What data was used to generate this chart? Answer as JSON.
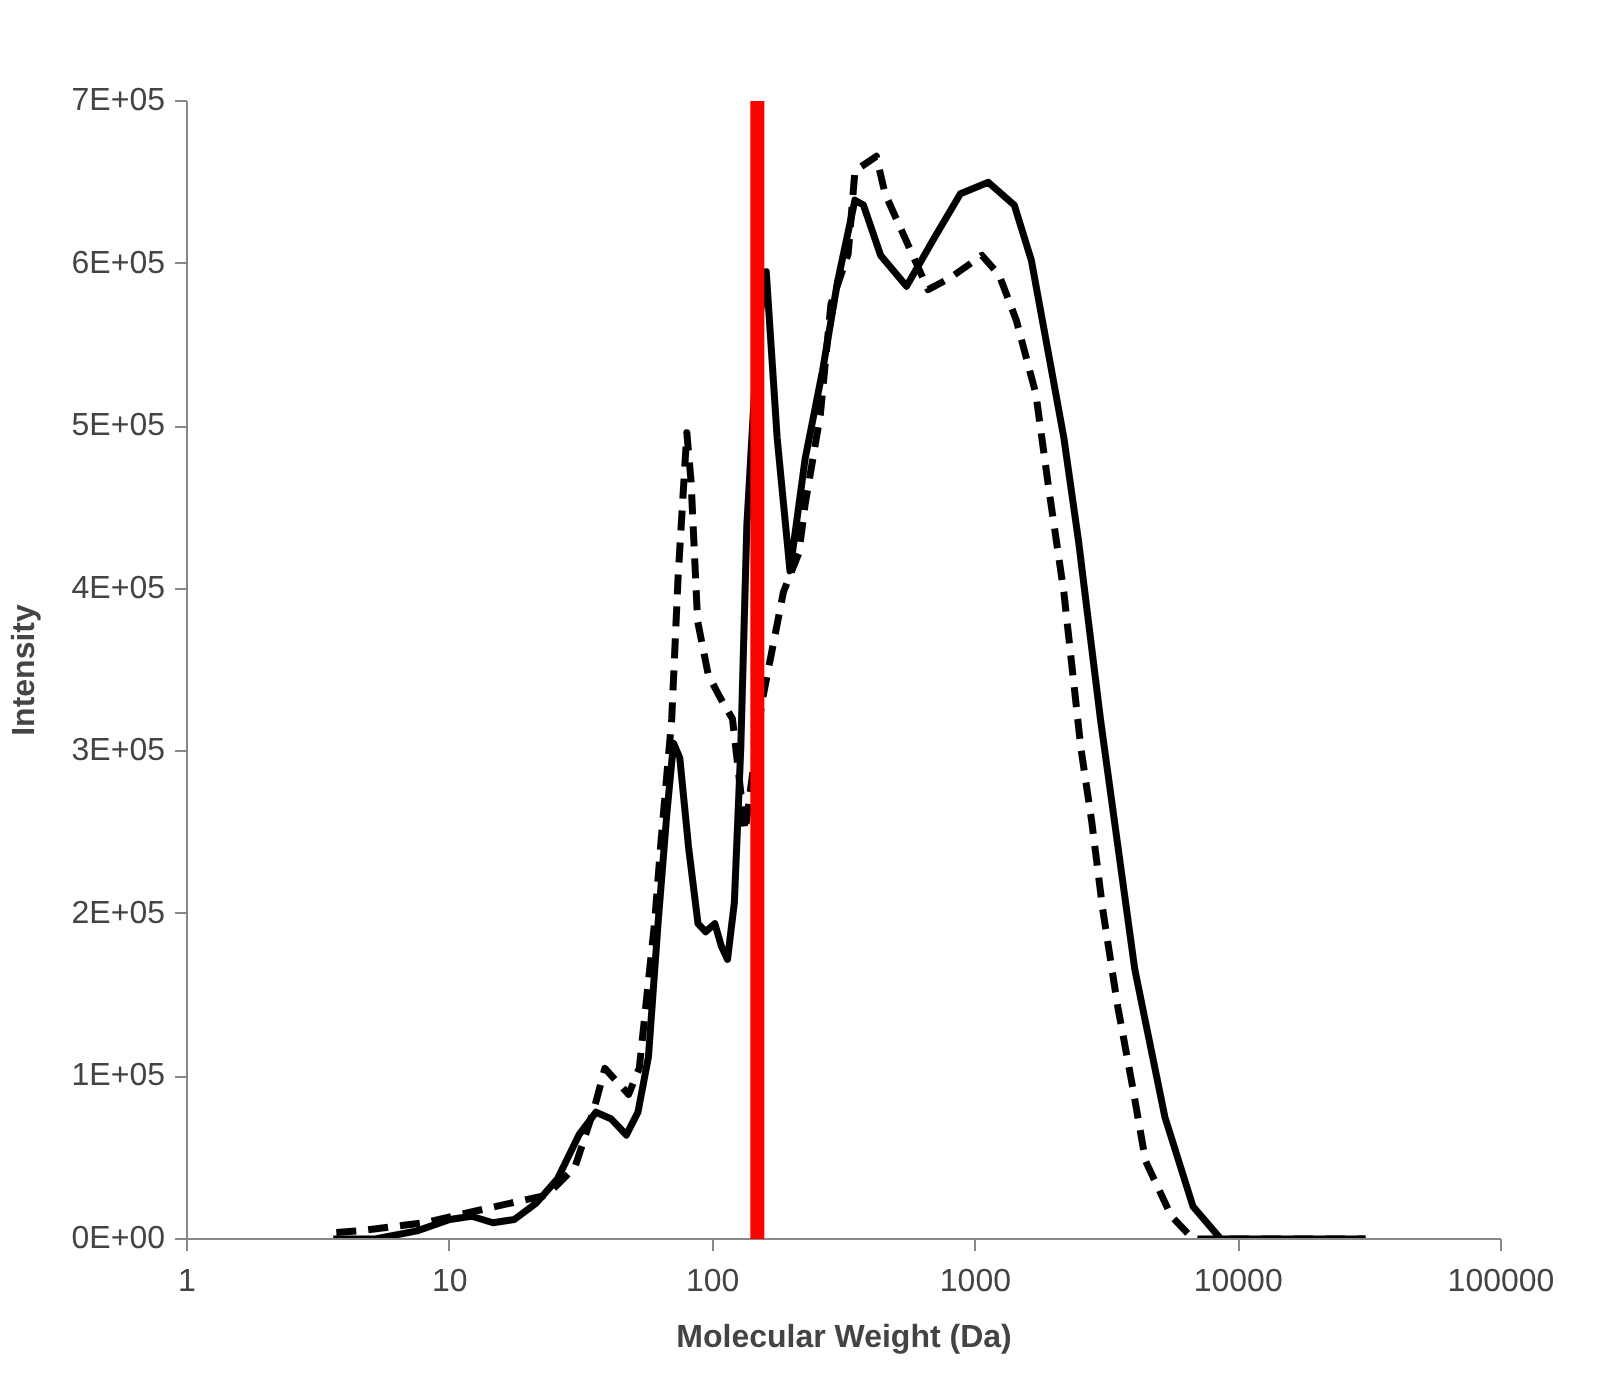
{
  "chart_data": {
    "type": "line",
    "xlabel": "Molecular Weight (Da)",
    "ylabel": "Intensity",
    "log": "x",
    "xlim": [
      1,
      100000
    ],
    "xticks": [
      1,
      10,
      100,
      1000,
      10000,
      100000
    ],
    "ylim": [
      0,
      700000
    ],
    "yticks": [
      {
        "value": 0,
        "label": "0E+00"
      },
      {
        "value": 100000,
        "label": "1E+05"
      },
      {
        "value": 200000,
        "label": "2E+05"
      },
      {
        "value": 300000,
        "label": "3E+05"
      },
      {
        "value": 400000,
        "label": "4E+05"
      },
      {
        "value": 500000,
        "label": "5E+05"
      },
      {
        "value": 600000,
        "label": "6E+05"
      },
      {
        "value": 700000,
        "label": "7E+05"
      }
    ],
    "grid": false,
    "marker": "none",
    "ref_lines": [
      {
        "axis": "x",
        "value": 148,
        "color": "#ff0000",
        "line_style": "solid"
      }
    ],
    "series": [
      {
        "color": "#000000",
        "line_style": "solid",
        "x": [
          3.6,
          5.2,
          7.5,
          10,
          12.1,
          14.6,
          17.6,
          21.3,
          25.7,
          31,
          36,
          41,
          47,
          52,
          57,
          62,
          67,
          71,
          75,
          81,
          88,
          94,
          102,
          108,
          114,
          121,
          128,
          135,
          149,
          160,
          176,
          197,
          225,
          262,
          299,
          348,
          375,
          436,
          547,
          699,
          877,
          1120,
          1406,
          1633,
          1900,
          2170,
          2470,
          2990,
          4040,
          5260,
          6730,
          8590,
          11900,
          30500
        ],
        "values": [
          0,
          0,
          5000,
          12000,
          14000,
          10000,
          12000,
          22000,
          37000,
          64000,
          78000,
          74000,
          64000,
          78000,
          112000,
          194000,
          262000,
          305000,
          296000,
          241000,
          194000,
          189000,
          194000,
          180000,
          172000,
          207000,
          302000,
          439000,
          560000,
          595000,
          493000,
          411000,
          480000,
          534000,
          589000,
          639000,
          636000,
          605000,
          586000,
          616000,
          643000,
          650000,
          636000,
          602000,
          544000,
          493000,
          429000,
          320000,
          166000,
          75000,
          20000,
          0,
          0,
          0
        ]
      },
      {
        "color": "#000000",
        "line_style": "dashed",
        "x": [
          3.7,
          4.5,
          8.0,
          14.0,
          23.4,
          29.9,
          35.4,
          38.9,
          47.9,
          52.6,
          60.1,
          63.6,
          69.9,
          73.9,
          79.8,
          82.8,
          87.7,
          96.3,
          106,
          119,
          133,
          154,
          186,
          213,
          225,
          257,
          282,
          328,
          348,
          420,
          453,
          661,
          798,
          1059,
          1231,
          1432,
          1698,
          1900,
          2170,
          2520,
          2770,
          3050,
          3480,
          3960,
          4440,
          5570,
          6730,
          8590,
          30500
        ],
        "values": [
          4000,
          5000,
          10000,
          19000,
          27000,
          44000,
          80000,
          105000,
          89000,
          105000,
          194000,
          244000,
          320000,
          407000,
          496000,
          466000,
          380000,
          347000,
          334000,
          320000,
          251000,
          330000,
          398000,
          422000,
          452000,
          507000,
          575000,
          606000,
          657000,
          666000,
          643000,
          584000,
          591000,
          605000,
          593000,
          565000,
          520000,
          462000,
          398000,
          302000,
          257000,
          203000,
          143000,
          94000,
          48000,
          14000,
          0,
          0,
          0
        ]
      }
    ]
  }
}
